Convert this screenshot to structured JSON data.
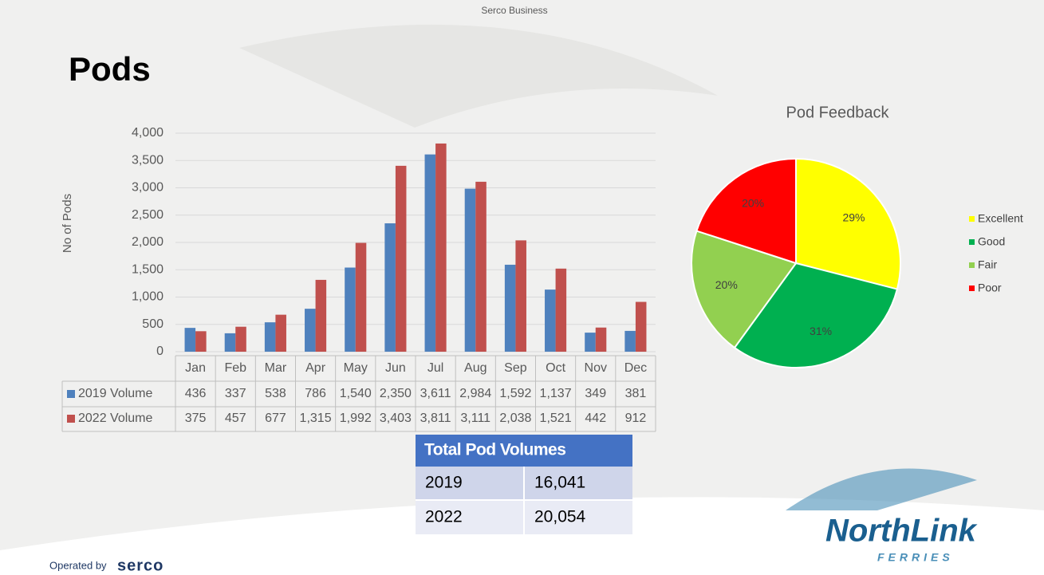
{
  "header": {
    "label": "Serco Business",
    "title": "Pods"
  },
  "chart_data": [
    {
      "type": "bar",
      "y_label": "No of Pods",
      "categories": [
        "Jan",
        "Feb",
        "Mar",
        "Apr",
        "May",
        "Jun",
        "Jul",
        "Aug",
        "Sep",
        "Oct",
        "Nov",
        "Dec"
      ],
      "series": [
        {
          "name": "2019 Volume",
          "color": "#4f81bd",
          "values": [
            436,
            337,
            538,
            786,
            1540,
            2350,
            3611,
            2984,
            1592,
            1137,
            349,
            381
          ],
          "value_labels": [
            "436",
            "337",
            "538",
            "786",
            "1,540",
            "2,350",
            "3,611",
            "2,984",
            "1,592",
            "1,137",
            "349",
            "381"
          ]
        },
        {
          "name": "2022 Volume",
          "color": "#c0504d",
          "values": [
            375,
            457,
            677,
            1315,
            1992,
            3403,
            3811,
            3111,
            2038,
            1521,
            442,
            912
          ],
          "value_labels": [
            "375",
            "457",
            "677",
            "1,315",
            "1,992",
            "3,403",
            "3,811",
            "3,111",
            "2,038",
            "1,521",
            "442",
            "912"
          ]
        }
      ],
      "ylim": [
        0,
        4000
      ],
      "yticks": [
        0,
        500,
        {
          "value": 1000,
          "label": "1,000"
        },
        {
          "value": 1500,
          "label": "1,500"
        },
        {
          "value": 2000,
          "label": "2,000"
        },
        {
          "value": 2500,
          "label": "2,500"
        },
        {
          "value": 3000,
          "label": "3,000"
        },
        {
          "value": 3500,
          "label": "3,500"
        },
        {
          "value": 4000,
          "label": "4,000"
        }
      ],
      "grid": true,
      "data_table": true
    },
    {
      "type": "pie",
      "title": "Pod Feedback",
      "categories": [
        "Excellent",
        "Good",
        "Fair",
        "Poor"
      ],
      "values": [
        29,
        31,
        20,
        20
      ],
      "value_labels": [
        "29%",
        "31%",
        "20%",
        "20%"
      ],
      "colors": [
        "#ffff00",
        "#00b050",
        "#92d050",
        "#ff0000"
      ],
      "legend": "right"
    }
  ],
  "table": {
    "header": "Total Pod Volumes",
    "rows": [
      [
        "2019",
        "16,041"
      ],
      [
        "2022",
        "20,054"
      ]
    ]
  },
  "footer": {
    "operated": "Operated by",
    "operator": "serco",
    "brand": "NorthLink",
    "brand_sub": "FERRIES"
  }
}
